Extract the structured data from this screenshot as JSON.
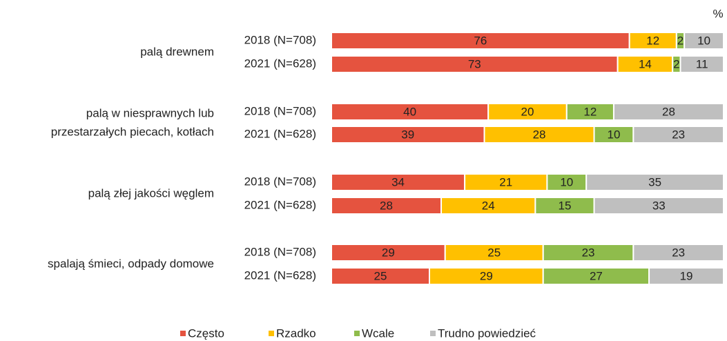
{
  "chart_data": {
    "type": "stacked_bar_horizontal",
    "unit_label": "%",
    "groups": [
      [
        "palą drewnem"
      ],
      [
        "palą w niesprawnych lub",
        "przestarzałych piecach, kotłach"
      ],
      [
        "palą złej jakości węglem"
      ],
      [
        "spalają śmieci, odpady domowe"
      ]
    ],
    "categories": [
      "2018 (N=708)",
      "2021 (N=628)",
      "2018 (N=708)",
      "2021 (N=628)",
      "2018 (N=708)",
      "2021 (N=628)",
      "2018 (N=708)",
      "2021 (N=628)"
    ],
    "xlim": [
      0,
      100
    ],
    "legend": "bottom",
    "series": [
      {
        "name": "Często",
        "color": "#e5533f",
        "values": [
          76,
          73,
          40,
          39,
          34,
          28,
          29,
          25
        ]
      },
      {
        "name": "Rzadko",
        "color": "#ffc000",
        "values": [
          12,
          14,
          20,
          28,
          21,
          24,
          25,
          29
        ]
      },
      {
        "name": "Wcale",
        "color": "#8fbc4c",
        "values": [
          2,
          2,
          12,
          10,
          10,
          15,
          23,
          27
        ]
      },
      {
        "name": "Trudno powiedzieć",
        "color": "#bfbfbf",
        "values": [
          10,
          11,
          28,
          23,
          35,
          33,
          23,
          19
        ]
      }
    ]
  }
}
